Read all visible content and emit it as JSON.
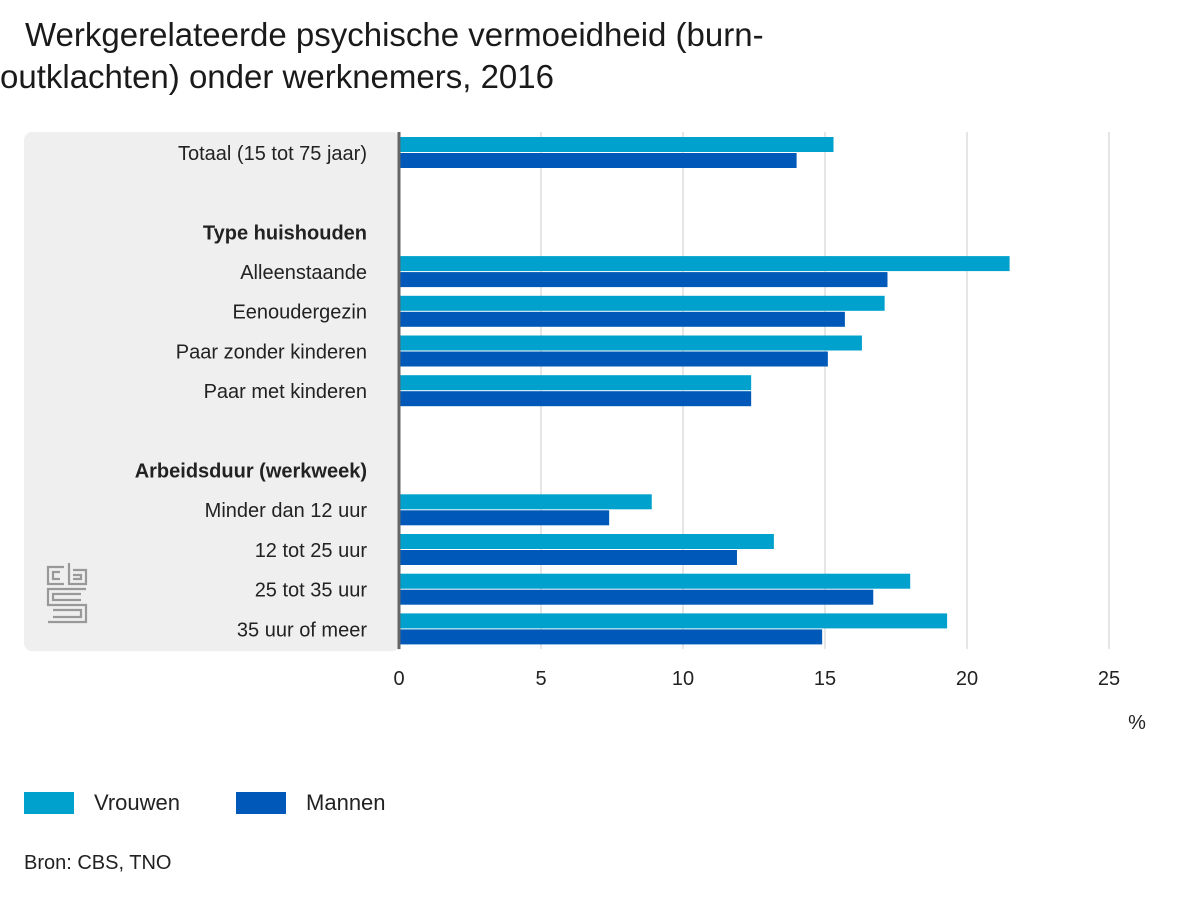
{
  "title": "Werkgerelateerde psychische vermoeidheid (burn-outklachten) onder werknemers, 2016",
  "source": "Bron: CBS, TNO",
  "logo": "cbs",
  "colors": {
    "vrouwen": "#00a1cd",
    "mannen": "#0058b8",
    "panel": "#efefef",
    "grid": "#cccccc",
    "axis": "#666666"
  },
  "chart_data": {
    "type": "bar",
    "orientation": "horizontal",
    "unit_label": "%",
    "xlim": [
      0,
      25
    ],
    "xticks": [
      "0",
      "5",
      "10",
      "15",
      "20",
      "25"
    ],
    "grid": true,
    "legend_placement": "bottom-left",
    "rows": [
      {
        "label": "Totaal (15 tot 75 jaar)",
        "header": false,
        "values": [
          15.3,
          14.0
        ]
      },
      {
        "label": "",
        "header": false,
        "spacer": true
      },
      {
        "label": "Type huishouden",
        "header": true
      },
      {
        "label": "Alleenstaande",
        "header": false,
        "values": [
          21.5,
          17.2
        ]
      },
      {
        "label": "Eenoudergezin",
        "header": false,
        "values": [
          17.1,
          15.7
        ]
      },
      {
        "label": "Paar zonder kinderen",
        "header": false,
        "values": [
          16.3,
          15.1
        ]
      },
      {
        "label": "Paar met kinderen",
        "header": false,
        "values": [
          12.4,
          12.4
        ]
      },
      {
        "label": "",
        "header": false,
        "spacer": true
      },
      {
        "label": "Arbeidsduur (werkweek)",
        "header": true
      },
      {
        "label": "Minder dan 12 uur",
        "header": false,
        "values": [
          8.9,
          7.4
        ]
      },
      {
        "label": "12 tot 25 uur",
        "header": false,
        "values": [
          13.2,
          11.9
        ]
      },
      {
        "label": "25 tot 35 uur",
        "header": false,
        "values": [
          18.0,
          16.7
        ]
      },
      {
        "label": "35 uur of meer",
        "header": false,
        "values": [
          19.3,
          14.9
        ]
      }
    ],
    "series": [
      {
        "name": "Vrouwen",
        "color": "#00a1cd"
      },
      {
        "name": "Mannen",
        "color": "#0058b8"
      }
    ]
  }
}
